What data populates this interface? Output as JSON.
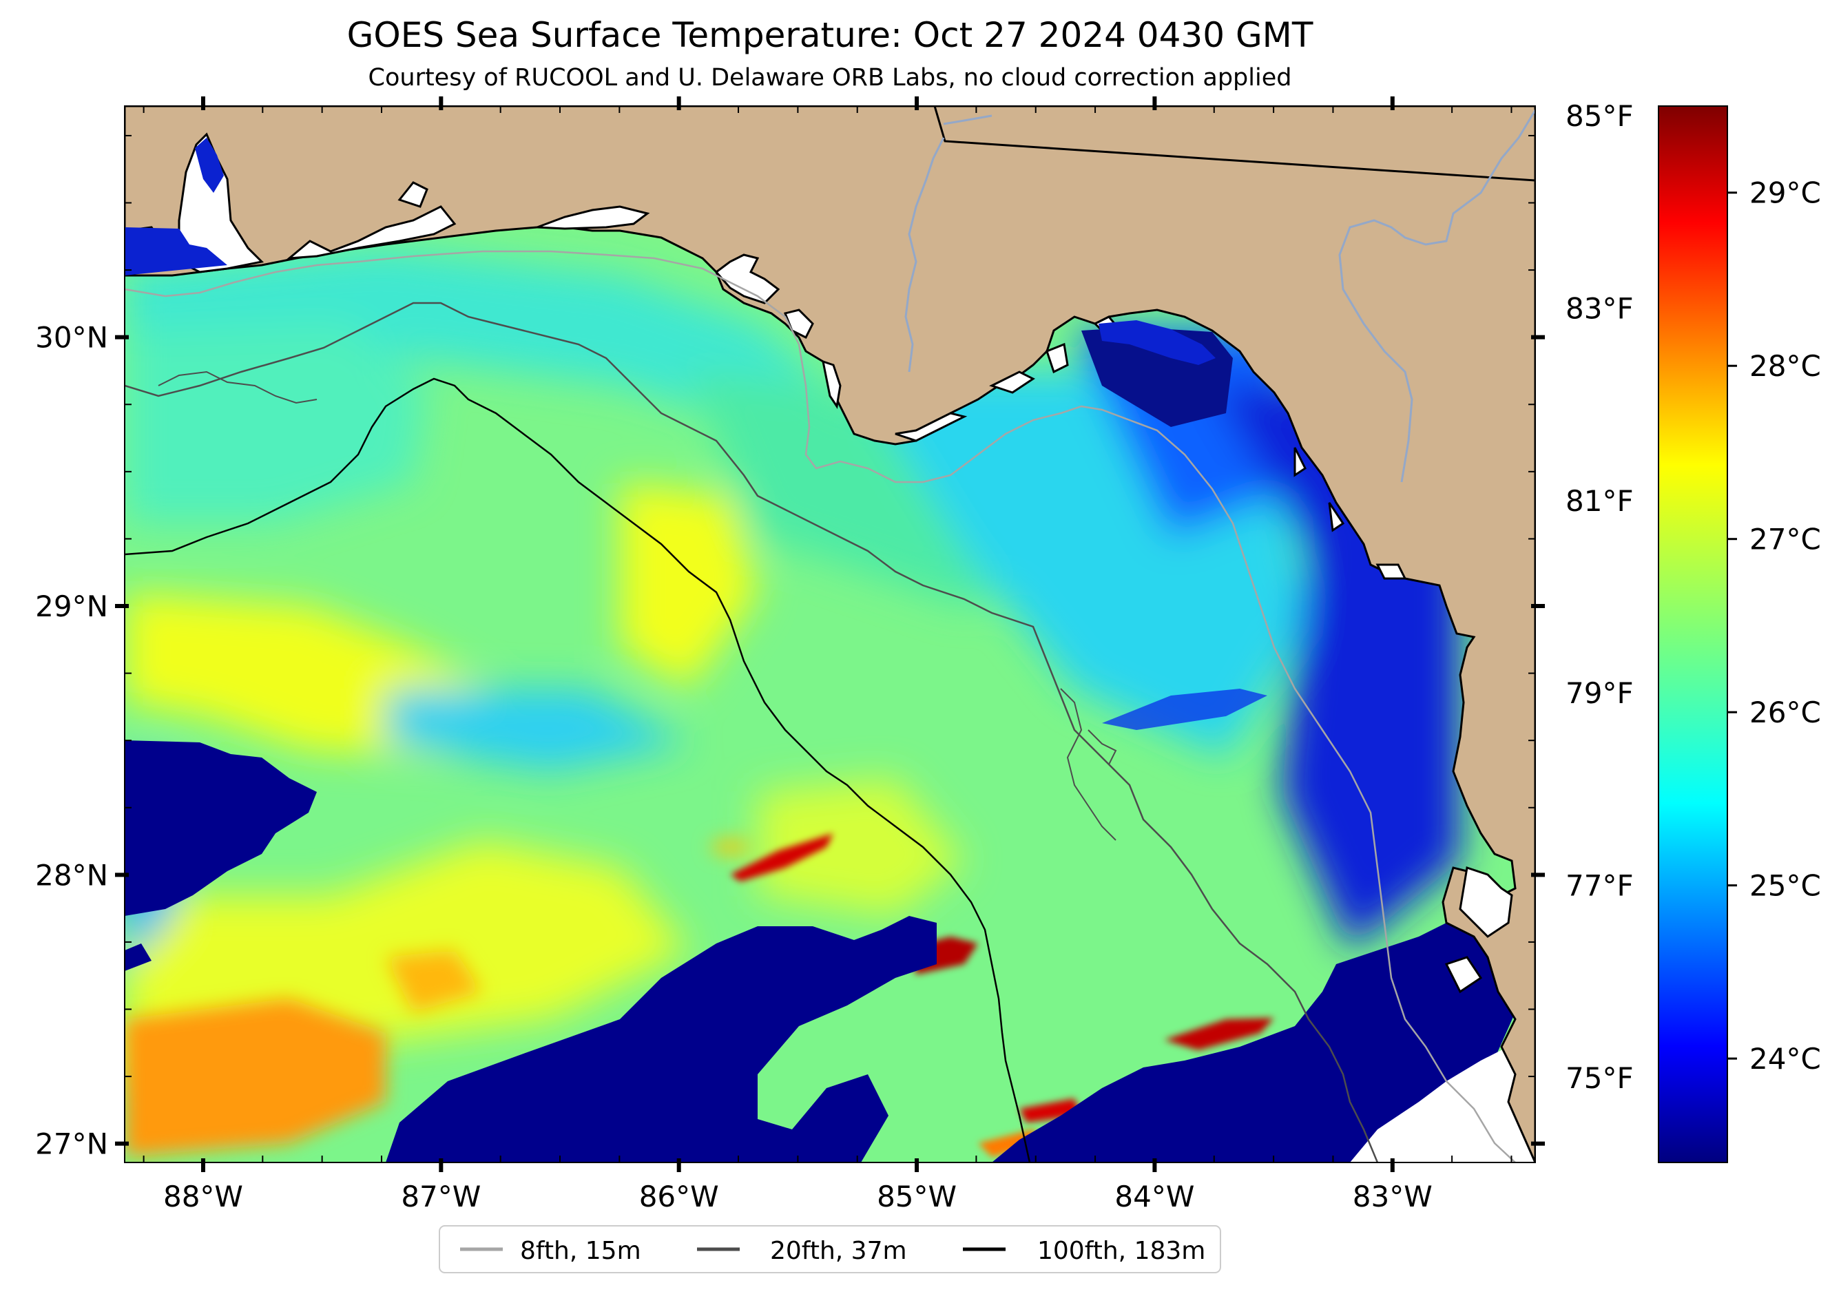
{
  "title": "GOES Sea Surface Temperature: Oct 27 2024 0430 GMT",
  "subtitle": "Courtesy of RUCOOL and U. Delaware ORB Labs, no cloud correction applied",
  "map": {
    "lon_range": [
      -88.33,
      -82.4
    ],
    "lat_range": [
      26.93,
      30.86
    ],
    "lon_ticks": [
      {
        "value": -88,
        "label": "88°W"
      },
      {
        "value": -87,
        "label": "87°W"
      },
      {
        "value": -86,
        "label": "86°W"
      },
      {
        "value": -85,
        "label": "85°W"
      },
      {
        "value": -84,
        "label": "84°W"
      },
      {
        "value": -83,
        "label": "83°W"
      }
    ],
    "lat_ticks": [
      {
        "value": 30,
        "label": "30°N"
      },
      {
        "value": 29,
        "label": "29°N"
      },
      {
        "value": 28,
        "label": "28°N"
      },
      {
        "value": 27,
        "label": "27°N"
      }
    ],
    "fahrenheit_ticks": [
      {
        "value": 85,
        "label": "85°F"
      },
      {
        "value": 83,
        "label": "83°F"
      },
      {
        "value": 81,
        "label": "81°F"
      },
      {
        "value": 79,
        "label": "79°F"
      },
      {
        "value": 77,
        "label": "77°F"
      },
      {
        "value": 75,
        "label": "75°F"
      }
    ],
    "land_color": "#d0b38f",
    "cloud_mask_color": "#ffffff"
  },
  "colorbar": {
    "colormap": "jet",
    "range_c": [
      23.4,
      29.5
    ],
    "ticks": [
      {
        "value": 29,
        "label": "29°C"
      },
      {
        "value": 28,
        "label": "28°C"
      },
      {
        "value": 27,
        "label": "27°C"
      },
      {
        "value": 26,
        "label": "26°C"
      },
      {
        "value": 25,
        "label": "25°C"
      },
      {
        "value": 24,
        "label": "24°C"
      }
    ]
  },
  "legend": {
    "placement": "bottom-center",
    "entries": [
      {
        "label": "8fth, 15m",
        "color": "#a6a6a6"
      },
      {
        "label": "20fth, 37m",
        "color": "#4d4d4d"
      },
      {
        "label": "100fth, 183m",
        "color": "#000000"
      }
    ]
  }
}
